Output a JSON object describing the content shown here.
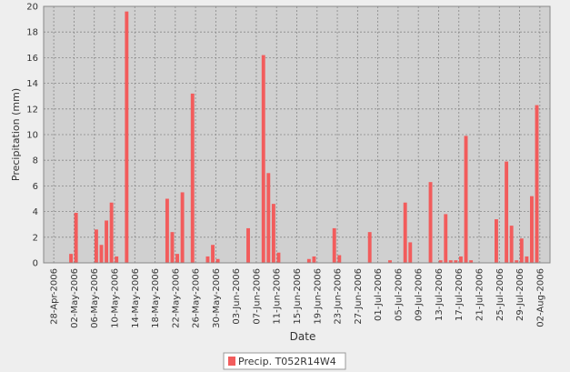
{
  "chart_data": {
    "type": "bar",
    "x_label": "Date",
    "y_label": "Precipitation (mm)",
    "xlim": [
      "26-Apr-2006",
      "04-Aug-2006"
    ],
    "xticks": [
      "28-Apr-2006",
      "02-May-2006",
      "06-May-2006",
      "10-May-2006",
      "14-May-2006",
      "18-May-2006",
      "22-May-2006",
      "26-May-2006",
      "30-May-2006",
      "03-Jun-2006",
      "07-Jun-2006",
      "11-Jun-2006",
      "15-Jun-2006",
      "19-Jun-2006",
      "23-Jun-2006",
      "27-Jun-2006",
      "01-Jul-2006",
      "05-Jul-2006",
      "09-Jul-2006",
      "13-Jul-2006",
      "17-Jul-2006",
      "21-Jul-2006",
      "25-Jul-2006",
      "29-Jul-2006",
      "02-Aug-2006"
    ],
    "ylim": [
      0,
      20
    ],
    "yticks": [
      0,
      2,
      4,
      6,
      8,
      10,
      12,
      14,
      16,
      18,
      20
    ],
    "grid": true,
    "legend": "bottom",
    "x": [
      "01-May-2006",
      "02-May-2006",
      "06-May-2006",
      "07-May-2006",
      "08-May-2006",
      "09-May-2006",
      "10-May-2006",
      "12-May-2006",
      "20-May-2006",
      "21-May-2006",
      "22-May-2006",
      "23-May-2006",
      "25-May-2006",
      "28-May-2006",
      "29-May-2006",
      "30-May-2006",
      "05-Jun-2006",
      "08-Jun-2006",
      "09-Jun-2006",
      "10-Jun-2006",
      "11-Jun-2006",
      "17-Jun-2006",
      "18-Jun-2006",
      "22-Jun-2006",
      "23-Jun-2006",
      "29-Jun-2006",
      "03-Jul-2006",
      "06-Jul-2006",
      "07-Jul-2006",
      "11-Jul-2006",
      "13-Jul-2006",
      "14-Jul-2006",
      "15-Jul-2006",
      "16-Jul-2006",
      "17-Jul-2006",
      "18-Jul-2006",
      "19-Jul-2006",
      "24-Jul-2006",
      "26-Jul-2006",
      "27-Jul-2006",
      "28-Jul-2006",
      "29-Jul-2006",
      "30-Jul-2006",
      "31-Jul-2006",
      "01-Aug-2006"
    ],
    "series": [
      {
        "name": "Precip. T052R14W4",
        "color": "#f25c5c",
        "values": [
          0.7,
          3.9,
          2.6,
          1.4,
          3.3,
          4.7,
          0.5,
          19.6,
          5.0,
          2.4,
          0.7,
          5.5,
          13.2,
          0.5,
          1.4,
          0.3,
          2.7,
          16.2,
          7.0,
          4.6,
          0.8,
          0.3,
          0.5,
          2.7,
          0.6,
          2.4,
          0.2,
          4.7,
          1.6,
          6.3,
          0.2,
          3.8,
          0.2,
          0.2,
          0.5,
          9.9,
          0.2,
          3.4,
          7.9,
          2.9,
          0.2,
          1.9,
          0.5,
          5.2,
          12.3
        ]
      }
    ]
  }
}
